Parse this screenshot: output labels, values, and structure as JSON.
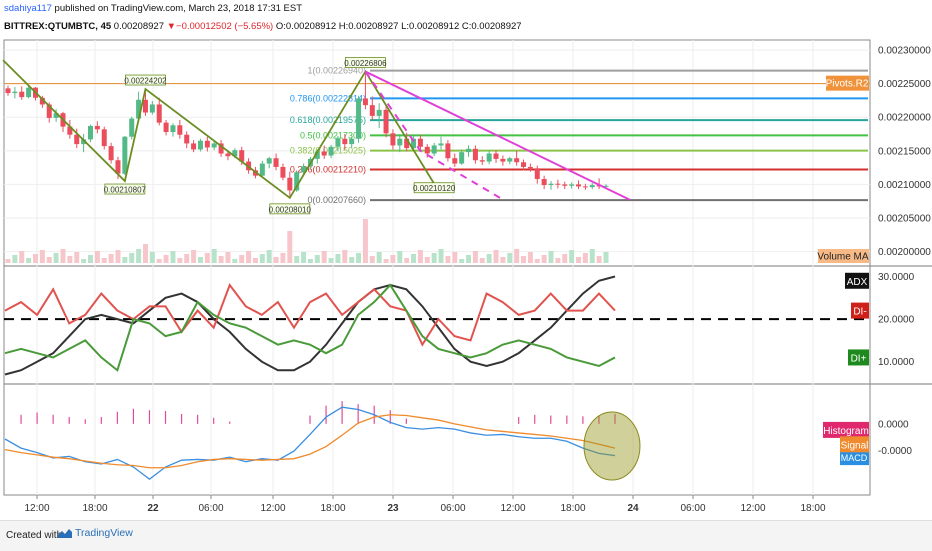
{
  "header": {
    "user": "sdahiya117",
    "published": "published on TradingView.com, March 23, 2018 17:31 EST",
    "symbol": "BITTREX:QTUMBTC, 45",
    "last": "0.00208927",
    "change": "−0.00012502 (−5.65%)",
    "ohlc": {
      "o": "0.00208912",
      "h": "0.00208927",
      "l": "0.00208912",
      "c": "0.00208927"
    }
  },
  "footer": {
    "created_with": "Created with",
    "brand": "TradingView"
  },
  "colors": {
    "up": "#53b987",
    "down": "#eb4d5c",
    "pivot": "#e58b2e",
    "pivot_label_bg": "#f0923a",
    "magenta": "#e040d8",
    "trend": "#6b8e23",
    "adx": "#333333",
    "di_minus": "#e0534f",
    "di_plus": "#4a9a3a",
    "macd": "#3b8fe0",
    "signal": "#f08a2c",
    "histogram": "#e04a9a"
  },
  "chart_data": [
    {
      "type": "candlestick",
      "title": "",
      "x_ticks": [
        "12:00",
        "18:00",
        "22",
        "06:00",
        "12:00",
        "18:00",
        "23",
        "06:00",
        "12:00",
        "18:00",
        "24",
        "06:00",
        "12:00",
        "18:00"
      ],
      "y_ticks": [
        "0.00230000",
        "0.00225000",
        "0.00220000",
        "0.00215000",
        "0.00210000",
        "0.00205000",
        "0.00200000"
      ],
      "ylim": [
        0.00198,
        0.002315
      ],
      "candles": [
        [
          0.002243,
          0.002247,
          0.002232,
          0.002236
        ],
        [
          0.002236,
          0.002245,
          0.002228,
          0.002238
        ],
        [
          0.002238,
          0.002246,
          0.002226,
          0.00223
        ],
        [
          0.00223,
          0.002248,
          0.002228,
          0.002244
        ],
        [
          0.002244,
          0.002245,
          0.002225,
          0.002229
        ],
        [
          0.002229,
          0.002232,
          0.002214,
          0.002219
        ],
        [
          0.002219,
          0.002222,
          0.002192,
          0.002199
        ],
        [
          0.002199,
          0.002212,
          0.002193,
          0.002206
        ],
        [
          0.002206,
          0.002208,
          0.002178,
          0.002186
        ],
        [
          0.002186,
          0.002196,
          0.002168,
          0.002174
        ],
        [
          0.002174,
          0.002183,
          0.002154,
          0.00216
        ],
        [
          0.00216,
          0.002175,
          0.002148,
          0.002167
        ],
        [
          0.002167,
          0.002189,
          0.002163,
          0.002187
        ],
        [
          0.002187,
          0.002194,
          0.002176,
          0.002182
        ],
        [
          0.002182,
          0.002186,
          0.002152,
          0.002157
        ],
        [
          0.002157,
          0.002162,
          0.002131,
          0.002136
        ],
        [
          0.002136,
          0.002141,
          0.002108,
          0.002116
        ],
        [
          0.002116,
          0.002172,
          0.002114,
          0.002171
        ],
        [
          0.002171,
          0.002201,
          0.002167,
          0.002198
        ],
        [
          0.002198,
          0.002238,
          0.002194,
          0.002226
        ],
        [
          0.002226,
          0.002242,
          0.002202,
          0.002207
        ],
        [
          0.002207,
          0.002224,
          0.002204,
          0.002219
        ],
        [
          0.002219,
          0.002229,
          0.002188,
          0.002192
        ],
        [
          0.002192,
          0.002196,
          0.002173,
          0.002178
        ],
        [
          0.002178,
          0.002191,
          0.002171,
          0.002188
        ],
        [
          0.002188,
          0.002196,
          0.002168,
          0.002174
        ],
        [
          0.002174,
          0.002179,
          0.002154,
          0.002161
        ],
        [
          0.002161,
          0.002166,
          0.002148,
          0.002152
        ],
        [
          0.002152,
          0.002168,
          0.002149,
          0.002165
        ],
        [
          0.002165,
          0.002171,
          0.002149,
          0.002155
        ],
        [
          0.002155,
          0.002164,
          0.002151,
          0.002161
        ],
        [
          0.002161,
          0.002166,
          0.002141,
          0.002146
        ],
        [
          0.002146,
          0.002151,
          0.002136,
          0.002142
        ],
        [
          0.002142,
          0.002154,
          0.002139,
          0.002151
        ],
        [
          0.002151,
          0.002156,
          0.002129,
          0.002134
        ],
        [
          0.002134,
          0.002139,
          0.002116,
          0.002121
        ],
        [
          0.002121,
          0.002126,
          0.002109,
          0.002113
        ],
        [
          0.002113,
          0.002135,
          0.002111,
          0.002131
        ],
        [
          0.002131,
          0.002141,
          0.002124,
          0.002139
        ],
        [
          0.002139,
          0.002146,
          0.002121,
          0.002126
        ],
        [
          0.002126,
          0.002131,
          0.002106,
          0.00211
        ],
        [
          0.00211,
          0.002119,
          0.002081,
          0.002091
        ],
        [
          0.002091,
          0.002121,
          0.002089,
          0.002118
        ],
        [
          0.002118,
          0.002131,
          0.002112,
          0.002127
        ],
        [
          0.002127,
          0.002141,
          0.002122,
          0.002138
        ],
        [
          0.002138,
          0.002152,
          0.002131,
          0.002149
        ],
        [
          0.002149,
          0.002158,
          0.002138,
          0.002143
        ],
        [
          0.002143,
          0.002159,
          0.002139,
          0.002156
        ],
        [
          0.002156,
          0.002172,
          0.002149,
          0.002168
        ],
        [
          0.002168,
          0.002175,
          0.002152,
          0.00216
        ],
        [
          0.00216,
          0.002171,
          0.002155,
          0.002168
        ],
        [
          0.002168,
          0.002232,
          0.002162,
          0.002228
        ],
        [
          0.002228,
          0.002268,
          0.002212,
          0.002218
        ],
        [
          0.002218,
          0.002231,
          0.002196,
          0.002202
        ],
        [
          0.002202,
          0.002221,
          0.002184,
          0.002211
        ],
        [
          0.002211,
          0.002216,
          0.00217,
          0.002176
        ],
        [
          0.002176,
          0.002182,
          0.002152,
          0.002158
        ],
        [
          0.002158,
          0.002175,
          0.002148,
          0.002168
        ],
        [
          0.002168,
          0.002177,
          0.002149,
          0.002154
        ],
        [
          0.002154,
          0.002172,
          0.00215,
          0.002168
        ],
        [
          0.002168,
          0.002174,
          0.002151,
          0.002156
        ],
        [
          0.002156,
          0.00216,
          0.00214,
          0.002146
        ],
        [
          0.002146,
          0.002162,
          0.002142,
          0.002158
        ],
        [
          0.002158,
          0.002171,
          0.002152,
          0.002161
        ],
        [
          0.002161,
          0.002166,
          0.002134,
          0.002139
        ],
        [
          0.002139,
          0.002146,
          0.002126,
          0.002131
        ],
        [
          0.002131,
          0.002152,
          0.002129,
          0.002148
        ],
        [
          0.002148,
          0.002158,
          0.002141,
          0.002153
        ],
        [
          0.002153,
          0.002158,
          0.002131,
          0.002136
        ],
        [
          0.002136,
          0.002142,
          0.002129,
          0.002134
        ],
        [
          0.002134,
          0.002151,
          0.00213,
          0.002146
        ],
        [
          0.002146,
          0.002151,
          0.002132,
          0.002138
        ],
        [
          0.002138,
          0.002143,
          0.002128,
          0.002134
        ],
        [
          0.002134,
          0.002141,
          0.00213,
          0.002139
        ],
        [
          0.002139,
          0.00215,
          0.002128,
          0.002133
        ],
        [
          0.002133,
          0.002137,
          0.002121,
          0.002126
        ],
        [
          0.002126,
          0.002131,
          0.002119,
          0.002124
        ],
        [
          0.002124,
          0.002128,
          0.002101,
          0.002108
        ],
        [
          0.002108,
          0.002113,
          0.002093,
          0.002099
        ],
        [
          0.002099,
          0.002105,
          0.002092,
          0.002101
        ],
        [
          0.002101,
          0.002107,
          0.002094,
          0.0021
        ],
        [
          0.0021,
          0.002104,
          0.002093,
          0.002098
        ],
        [
          0.002098,
          0.002103,
          0.002094,
          0.0021
        ],
        [
          0.0021,
          0.002106,
          0.002093,
          0.002097
        ],
        [
          0.002097,
          0.002101,
          0.002092,
          0.002096
        ],
        [
          0.002096,
          0.002102,
          0.002093,
          0.002099
        ],
        [
          0.002099,
          0.002109,
          0.002093,
          0.002097
        ],
        [
          0.002097,
          0.0021,
          0.002094,
          0.002098
        ]
      ],
      "fib_levels": [
        {
          "label": "1(0.00226940)",
          "value": 0.0022694,
          "color": "#9e9e9e"
        },
        {
          "label": "0.786(0.00222814)",
          "value": 0.00222814,
          "color": "#2196f3"
        },
        {
          "label": "0.618(0.00219575)",
          "value": 0.00219575,
          "color": "#26a69a"
        },
        {
          "label": "0.5(0.00217300)",
          "value": 0.002173,
          "color": "#43c143"
        },
        {
          "label": "0.382(0.00215025)",
          "value": 0.00215025,
          "color": "#8bc34a"
        },
        {
          "label": "0.236(0.00212210)",
          "value": 0.0021221,
          "color": "#d32f2f"
        },
        {
          "label": "0(0.00207660)",
          "value": 0.0020766,
          "color": "#707070"
        }
      ],
      "pivot_label": "Pivots.R2",
      "pivot_value": 0.00225,
      "point_labels": [
        "0.00224202",
        "0.00210807",
        "0.00208010",
        "0.00226806",
        "0.00210120"
      ],
      "volume_label": "Volume MA"
    },
    {
      "type": "line",
      "title": "",
      "y_ticks": [
        "30.0000",
        "20.0000",
        "10.0000"
      ],
      "ylim": [
        5,
        32
      ],
      "reference_line": 20,
      "labels": {
        "adx": "ADX",
        "di_minus": "DI-",
        "di_plus": "DI+"
      },
      "series": [
        {
          "name": "ADX",
          "values": [
            7,
            8,
            10,
            12,
            16,
            20,
            21,
            20,
            19,
            22,
            25,
            26,
            24,
            20,
            17,
            13,
            10,
            8,
            8,
            10,
            14,
            19,
            24,
            27,
            28,
            27,
            23,
            18,
            13,
            10,
            9,
            10,
            12,
            15,
            18,
            22,
            26,
            29,
            30
          ]
        },
        {
          "name": "DI-",
          "values": [
            22,
            24,
            21,
            27,
            19,
            21,
            26,
            22,
            20,
            23,
            23,
            17,
            22,
            18,
            28,
            23,
            21,
            24,
            18,
            24,
            26,
            21,
            24,
            27,
            23,
            22,
            14,
            20,
            16,
            15,
            26,
            24,
            21,
            22,
            26,
            22,
            22,
            26,
            22
          ]
        },
        {
          "name": "DI+",
          "values": [
            12,
            13,
            12,
            11,
            13,
            15,
            11,
            8,
            20,
            19,
            16,
            17,
            24,
            21,
            19,
            18,
            16,
            14,
            15,
            14,
            12,
            14,
            21,
            24,
            28,
            22,
            16,
            13,
            12,
            11,
            12,
            14,
            15,
            14,
            13,
            11,
            10,
            9,
            11
          ]
        }
      ]
    },
    {
      "type": "line",
      "title": "",
      "y_ticks": [
        "0.0000",
        "-0.0000"
      ],
      "labels": {
        "histogram": "Histogram",
        "signal": "Signal",
        "macd": "MACD"
      },
      "series": [
        {
          "name": "MACD",
          "values": [
            -0.2,
            -0.32,
            -0.38,
            -0.45,
            -0.43,
            -0.5,
            -0.53,
            -0.47,
            -0.57,
            -0.73,
            -0.57,
            -0.48,
            -0.47,
            -0.48,
            -0.44,
            -0.5,
            -0.46,
            -0.48,
            -0.36,
            -0.14,
            0.09,
            0.22,
            0.19,
            0.12,
            0.02,
            -0.05,
            -0.07,
            -0.05,
            -0.07,
            -0.12,
            -0.15,
            -0.14,
            -0.17,
            -0.19,
            -0.19,
            -0.23,
            -0.32,
            -0.39,
            -0.42
          ]
        },
        {
          "name": "Signal",
          "values": [
            -0.34,
            -0.38,
            -0.41,
            -0.44,
            -0.46,
            -0.49,
            -0.52,
            -0.54,
            -0.55,
            -0.58,
            -0.58,
            -0.55,
            -0.5,
            -0.47,
            -0.46,
            -0.47,
            -0.48,
            -0.47,
            -0.46,
            -0.4,
            -0.3,
            -0.15,
            0.01,
            0.09,
            0.12,
            0.11,
            0.08,
            0.05,
            0.0,
            -0.04,
            -0.08,
            -0.1,
            -0.12,
            -0.14,
            -0.16,
            -0.19,
            -0.22,
            -0.27,
            -0.32
          ]
        },
        {
          "name": "Histogram",
          "values": [
            0,
            0.12,
            0.15,
            0.12,
            0.09,
            0.06,
            0.09,
            0.16,
            0.2,
            0.18,
            0.17,
            0.13,
            0.12,
            0.08,
            0.03,
            0,
            0,
            0,
            0,
            0.11,
            0.24,
            0.3,
            0.26,
            0.24,
            0.18,
            0.07,
            0,
            0,
            0,
            0,
            0,
            0,
            0.09,
            0.12,
            0.11,
            0.11,
            0.1,
            0.11,
            0.13
          ]
        }
      ]
    }
  ]
}
